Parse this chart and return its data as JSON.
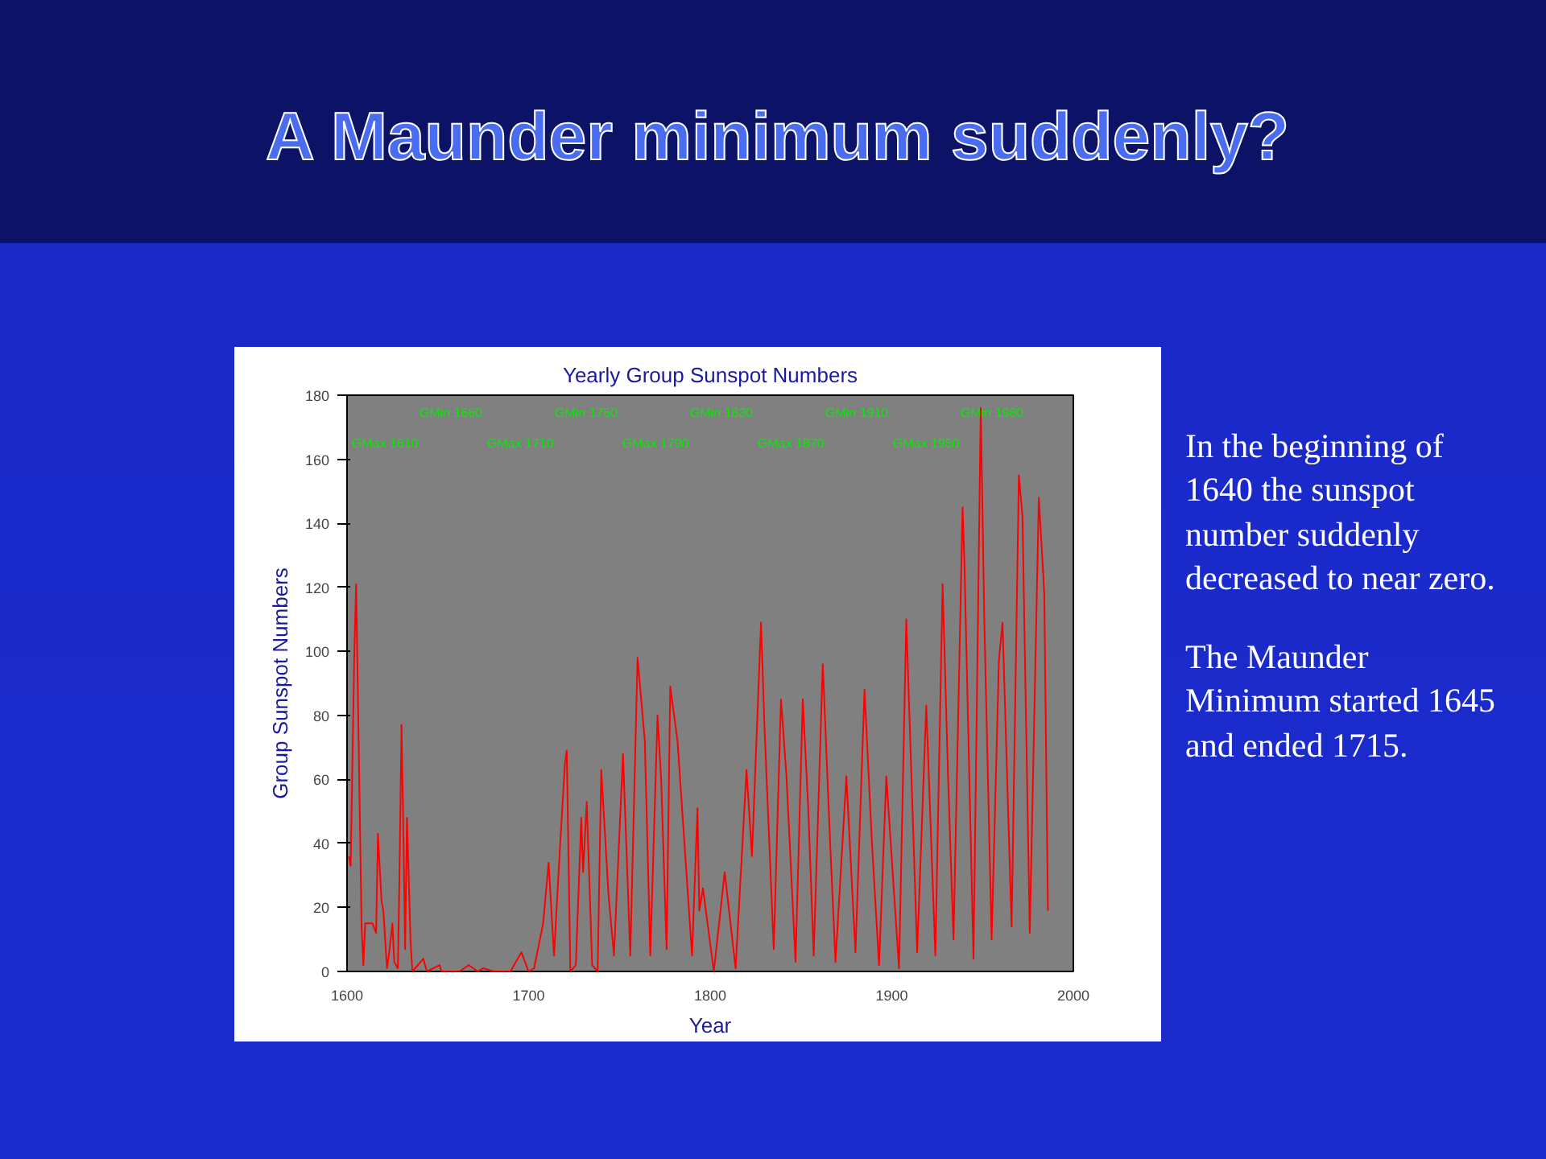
{
  "chart_data": {
    "type": "line",
    "title": "A Maunder minimum suddenly?",
    "subtitle": "Yearly Group Sunspot Numbers",
    "xlabel": "Year",
    "ylabel": "Group Sunspot Numbers",
    "xlim": [
      1600,
      2000
    ],
    "xticks": [
      1600,
      1700,
      1800,
      1900,
      2000
    ],
    "ylim": [
      0,
      180
    ],
    "yticks": [
      0,
      20,
      40,
      60,
      80,
      100,
      120,
      140,
      160,
      180
    ],
    "grid": false,
    "series": [
      {
        "color": "#ff0000",
        "x": [
          1601,
          1602,
          1604,
          1605,
          1607,
          1608,
          1609,
          1610,
          1614,
          1616,
          1617,
          1619,
          1620,
          1622,
          1623,
          1625,
          1626,
          1628,
          1629,
          1630,
          1631,
          1632,
          1633,
          1635,
          1636,
          1642,
          1644,
          1651,
          1652,
          1662,
          1667,
          1672,
          1675,
          1681,
          1690,
          1696,
          1700,
          1703,
          1708,
          1711,
          1714,
          1717,
          1720,
          1721,
          1723,
          1726,
          1729,
          1730,
          1732,
          1735,
          1738,
          1740,
          1744,
          1747,
          1752,
          1756,
          1760,
          1764,
          1767,
          1771,
          1773,
          1776,
          1778,
          1782,
          1790,
          1793,
          1794,
          1796,
          1802,
          1808,
          1814,
          1820,
          1823,
          1828,
          1830,
          1835,
          1839,
          1842,
          1847,
          1851,
          1854,
          1857,
          1862,
          1866,
          1869,
          1875,
          1880,
          1885,
          1889,
          1893,
          1897,
          1904,
          1908,
          1911,
          1914,
          1919,
          1924,
          1928,
          1931,
          1934,
          1939,
          1940,
          1945,
          1949,
          1951,
          1955,
          1959,
          1961,
          1966,
          1970,
          1972,
          1976,
          1981,
          1984,
          1986
        ],
        "values": [
          36,
          33,
          99,
          121,
          50,
          14,
          2,
          15,
          15,
          12,
          43,
          22,
          19,
          1,
          5,
          15,
          3,
          1,
          34,
          77,
          44,
          7,
          48,
          9,
          0,
          4,
          0,
          2,
          0,
          0,
          2,
          0,
          1,
          0,
          0,
          6,
          0,
          1,
          15,
          34,
          5,
          36,
          65,
          69,
          0,
          2,
          48,
          31,
          53,
          2,
          0,
          63,
          24,
          5,
          68,
          5,
          98,
          72,
          5,
          80,
          60,
          7,
          89,
          72,
          5,
          51,
          19,
          26,
          0,
          31,
          1,
          63,
          36,
          109,
          75,
          7,
          85,
          61,
          3,
          85,
          51,
          5,
          96,
          41,
          3,
          61,
          6,
          88,
          41,
          2,
          61,
          1,
          110,
          58,
          6,
          83,
          5,
          121,
          61,
          10,
          145,
          128,
          4,
          176,
          109,
          10,
          97,
          109,
          14,
          155,
          142,
          12,
          148,
          118,
          19
        ]
      }
    ],
    "annotations": [
      "GMax 1610",
      "GMin 1660",
      "GMax 1710",
      "GMin 1750",
      "GMax 1790",
      "GMin 1830",
      "GMax 1870",
      "GMin 1910",
      "GMax 1950",
      "GMin 1980",
      "In the beginning of 1640 the sunspot number suddenly decreased to near zero.",
      "The Maunder Minimum started 1645 and ended 1715."
    ]
  }
}
